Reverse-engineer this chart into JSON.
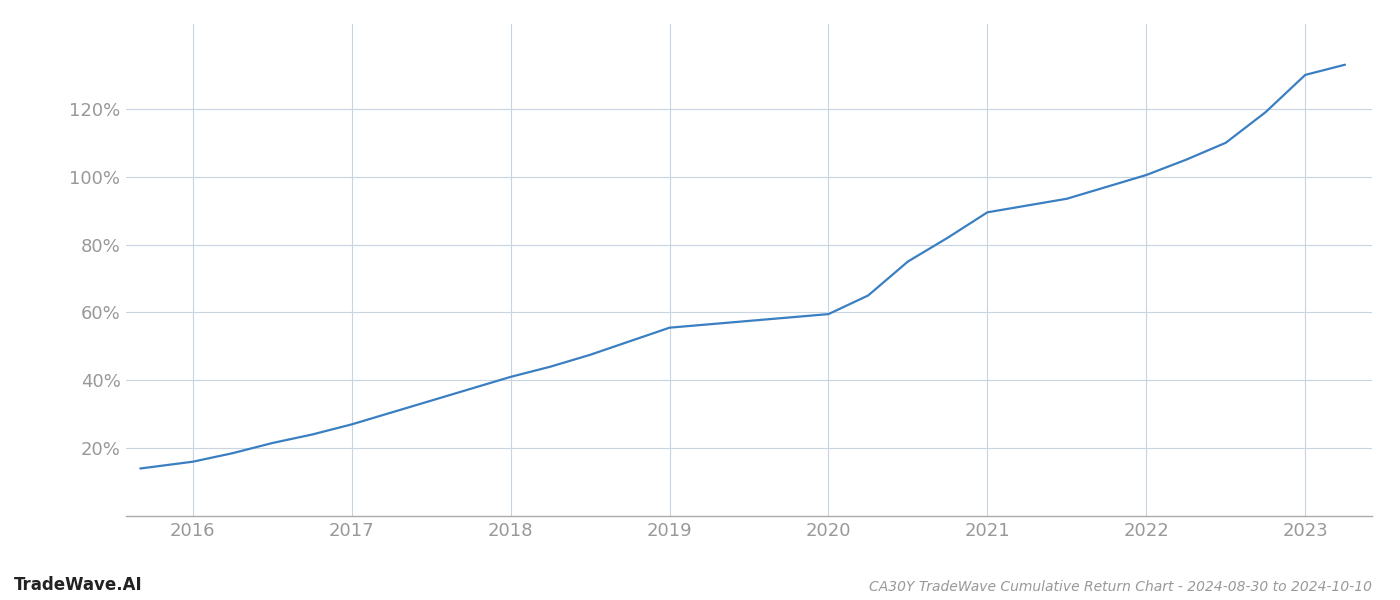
{
  "title": "CA30Y TradeWave Cumulative Return Chart - 2024-08-30 to 2024-10-10",
  "watermark": "TradeWave.AI",
  "line_color": "#3a7fc1",
  "background_color": "#ffffff",
  "grid_color": "#c8d4e0",
  "axis_color": "#aaaaaa",
  "tick_color": "#999999",
  "title_color": "#999999",
  "watermark_color": "#222222",
  "x_years": [
    2015.67,
    2016.0,
    2016.25,
    2016.5,
    2016.75,
    2017.0,
    2017.25,
    2017.5,
    2017.75,
    2018.0,
    2018.25,
    2018.5,
    2018.75,
    2019.0,
    2019.25,
    2019.5,
    2019.75,
    2020.0,
    2020.25,
    2020.5,
    2020.75,
    2021.0,
    2021.25,
    2021.5,
    2021.75,
    2022.0,
    2022.25,
    2022.5,
    2022.75,
    2023.0,
    2023.25
  ],
  "y_values": [
    14.0,
    16.0,
    18.5,
    21.5,
    24.0,
    27.0,
    30.5,
    34.0,
    37.5,
    41.0,
    44.0,
    47.5,
    51.5,
    55.5,
    56.5,
    57.5,
    58.5,
    59.5,
    65.0,
    75.0,
    82.0,
    89.5,
    91.5,
    93.5,
    97.0,
    100.5,
    105.0,
    110.0,
    119.0,
    130.0,
    133.0
  ],
  "xlim": [
    2015.58,
    2023.42
  ],
  "ylim": [
    0,
    145
  ],
  "yticks": [
    20,
    40,
    60,
    80,
    100,
    120
  ],
  "xticks": [
    2016,
    2017,
    2018,
    2019,
    2020,
    2021,
    2022,
    2023
  ],
  "title_fontsize": 10,
  "watermark_fontsize": 12,
  "tick_fontsize": 13,
  "line_width": 1.6
}
